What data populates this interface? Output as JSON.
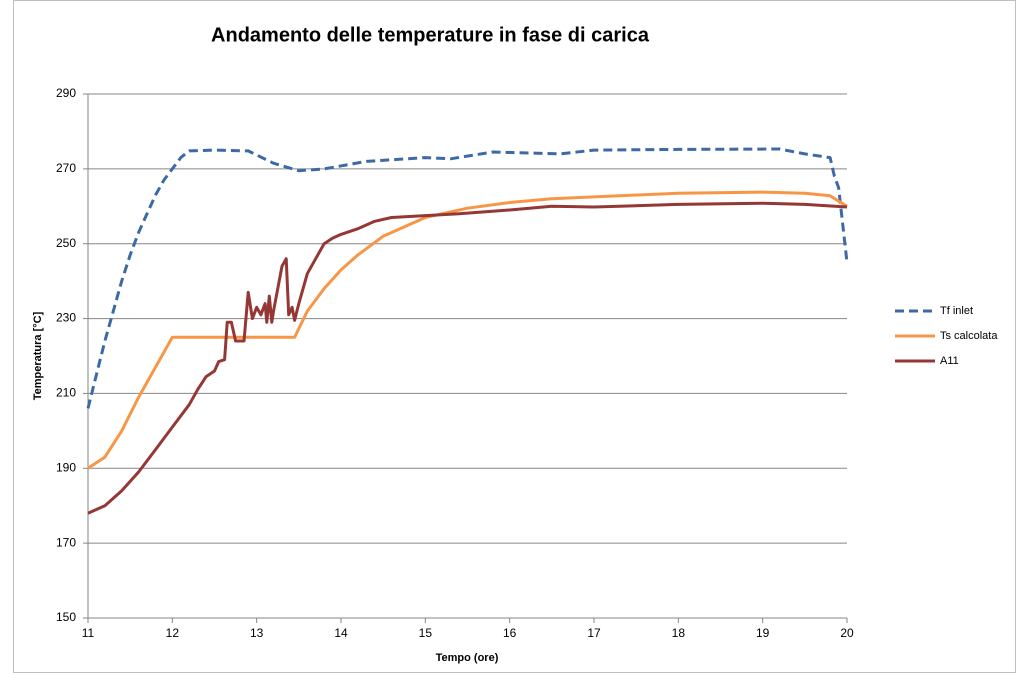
{
  "chart_data": {
    "type": "line",
    "title": "Andamento delle temperature  in fase di carica",
    "x_label": "Tempo (ore)",
    "y_label": "Temperatura [°C]",
    "xlim": [
      11,
      20
    ],
    "xticks": [
      11,
      12,
      13,
      14,
      15,
      16,
      17,
      18,
      19,
      20
    ],
    "ylim": [
      150,
      290
    ],
    "yticks": [
      150,
      170,
      190,
      210,
      230,
      250,
      270,
      290
    ],
    "grid": true,
    "legend": "right",
    "series": [
      {
        "name": "Tf inlet",
        "color": "#3d6aa5",
        "line_style": "dashed",
        "x": [
          11,
          11.1,
          11.2,
          11.3,
          11.4,
          11.5,
          11.6,
          11.7,
          11.8,
          11.9,
          12,
          12.1,
          12.2,
          12.5,
          12.9,
          13.2,
          13.5,
          13.8,
          14.3,
          15,
          15.3,
          15.8,
          16.6,
          17,
          18,
          19.2,
          19.5,
          19.8,
          19.85,
          19.9,
          20
        ],
        "values": [
          206,
          215,
          224,
          232,
          240,
          247,
          253,
          258,
          263,
          267,
          270,
          273,
          274.8,
          275,
          274.8,
          271.5,
          269.5,
          270,
          272,
          273,
          272.7,
          274.5,
          274,
          275,
          275.2,
          275.3,
          274,
          273,
          268,
          265,
          245
        ]
      },
      {
        "name": "Ts calcolata",
        "color": "#f79646",
        "line_style": "solid",
        "x": [
          11,
          11.2,
          11.4,
          11.6,
          11.8,
          12,
          13.45,
          13.6,
          13.8,
          14,
          14.2,
          14.5,
          15,
          15.5,
          16,
          16.5,
          17,
          18,
          19,
          19.5,
          19.8,
          20
        ],
        "values": [
          190,
          193,
          200,
          209,
          217,
          225,
          225,
          232,
          238,
          243,
          247,
          252,
          257,
          259.5,
          261,
          262,
          262.5,
          263.5,
          263.8,
          263.5,
          262.8,
          260
        ]
      },
      {
        "name": "A11",
        "color": "#953735",
        "line_style": "solid",
        "x": [
          11,
          11.2,
          11.4,
          11.6,
          11.8,
          12,
          12.2,
          12.3,
          12.4,
          12.5,
          12.55,
          12.62,
          12.65,
          12.7,
          12.75,
          12.85,
          12.9,
          12.95,
          13,
          13.05,
          13.1,
          13.12,
          13.15,
          13.18,
          13.2,
          13.3,
          13.35,
          13.38,
          13.42,
          13.45,
          13.5,
          13.6,
          13.7,
          13.8,
          13.9,
          14,
          14.2,
          14.4,
          14.6,
          15,
          15.4,
          16,
          16.5,
          17,
          18,
          19,
          19.5,
          20
        ],
        "values": [
          178,
          180,
          184,
          189,
          195,
          201,
          207,
          211,
          214.5,
          216,
          218.5,
          219,
          229,
          229,
          224,
          224,
          237,
          230,
          233,
          231,
          234,
          229,
          236,
          229,
          232,
          244,
          246,
          231,
          233,
          229.5,
          234,
          242,
          246,
          250,
          251.5,
          252.5,
          254,
          256,
          257,
          257.5,
          258,
          259,
          260,
          259.8,
          260.5,
          260.8,
          260.5,
          259.8
        ]
      }
    ]
  }
}
